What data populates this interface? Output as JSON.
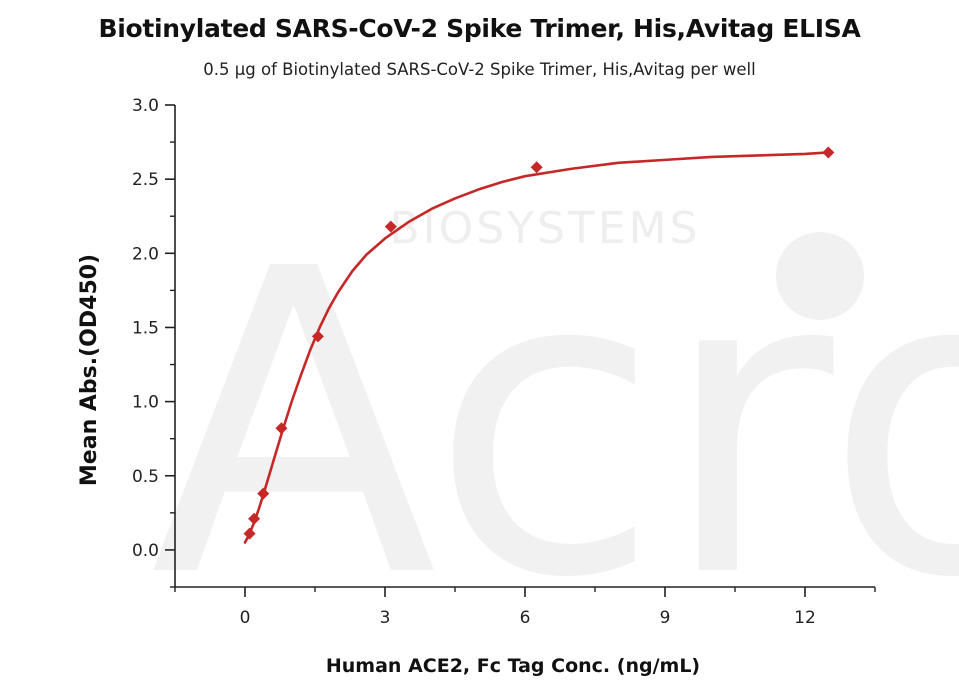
{
  "chart_data": {
    "type": "scatter",
    "title": "Biotinylated SARS-CoV-2 Spike Trimer, His,Avitag ELISA",
    "subtitle": "0.5 μg of Biotinylated SARS-CoV-2 Spike Trimer, His,Avitag per well",
    "xlabel": "Human ACE2, Fc Tag Conc. (ng/mL)",
    "ylabel": "Mean Abs.(OD450)",
    "xlim": [
      -1.5,
      13.5
    ],
    "ylim": [
      -0.25,
      3.0
    ],
    "x_ticks": [
      0,
      3,
      6,
      9,
      12
    ],
    "y_ticks": [
      0.0,
      0.5,
      1.0,
      1.5,
      2.0,
      2.5,
      3.0
    ],
    "x_tick_labels": [
      "0",
      "3",
      "6",
      "9",
      "12"
    ],
    "y_tick_labels": [
      "0.0",
      "0.5",
      "1.0",
      "1.5",
      "2.0",
      "2.5",
      "3.0"
    ],
    "series": [
      {
        "marker": "diamond",
        "color": "#c62828",
        "x": [
          0.098,
          0.195,
          0.391,
          0.781,
          1.5625,
          3.125,
          6.25,
          12.5
        ],
        "y": [
          0.11,
          0.21,
          0.38,
          0.82,
          1.44,
          2.18,
          2.58,
          2.68
        ]
      }
    ],
    "fit_curve": {
      "color": "#c62828",
      "x": [
        0,
        0.1,
        0.2,
        0.3,
        0.4,
        0.6,
        0.8,
        1.0,
        1.2,
        1.4,
        1.6,
        1.8,
        2.0,
        2.3,
        2.6,
        3.0,
        3.5,
        4.0,
        4.5,
        5.0,
        5.5,
        6.0,
        7.0,
        8.0,
        9.0,
        10.0,
        11.0,
        12.0,
        12.5
      ],
      "y": [
        0.05,
        0.11,
        0.19,
        0.28,
        0.38,
        0.59,
        0.8,
        1.0,
        1.18,
        1.35,
        1.5,
        1.63,
        1.74,
        1.88,
        1.99,
        2.1,
        2.21,
        2.3,
        2.37,
        2.43,
        2.48,
        2.52,
        2.57,
        2.61,
        2.63,
        2.65,
        2.66,
        2.67,
        2.68
      ]
    },
    "grid": false,
    "legend": "none"
  },
  "watermark": {
    "logo_text": "Acro",
    "company_text": "BIOSYSTEMS",
    "color": "#f1f1f1"
  }
}
